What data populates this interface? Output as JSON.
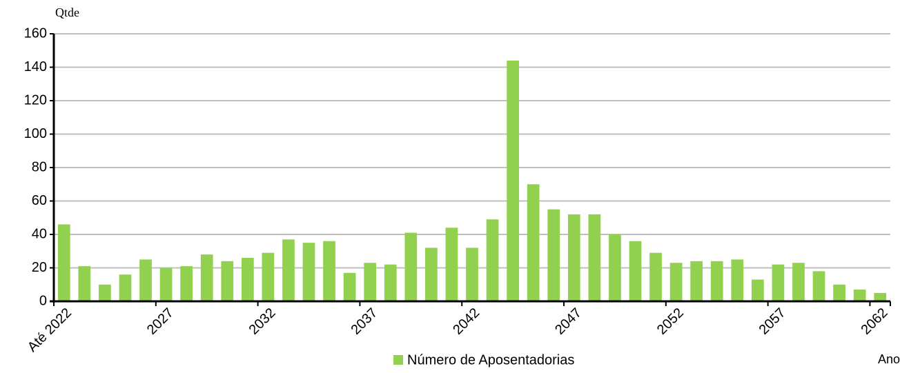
{
  "chart_data": {
    "type": "bar",
    "y_label": "Qtde",
    "x_label": "Ano",
    "categories": [
      "Até 2022",
      null,
      null,
      null,
      null,
      "2027",
      null,
      null,
      null,
      null,
      "2032",
      null,
      null,
      null,
      null,
      "2037",
      null,
      null,
      null,
      null,
      "2042",
      null,
      null,
      null,
      null,
      "2047",
      null,
      null,
      null,
      null,
      "2052",
      null,
      null,
      null,
      null,
      "2057",
      null,
      null,
      null,
      null,
      "2062"
    ],
    "series": [
      {
        "name": "Número de Aposentadorias",
        "color": "#92d050",
        "values": [
          46,
          21,
          10,
          16,
          25,
          20,
          21,
          28,
          24,
          26,
          29,
          37,
          35,
          36,
          17,
          23,
          22,
          41,
          32,
          44,
          32,
          49,
          144,
          70,
          55,
          52,
          52,
          40,
          36,
          29,
          23,
          24,
          24,
          25,
          13,
          22,
          23,
          18,
          10,
          7,
          5
        ]
      }
    ],
    "ylim": [
      0,
      160
    ],
    "yticks": [
      0,
      20,
      40,
      60,
      80,
      100,
      120,
      140,
      160
    ],
    "grid": true
  }
}
